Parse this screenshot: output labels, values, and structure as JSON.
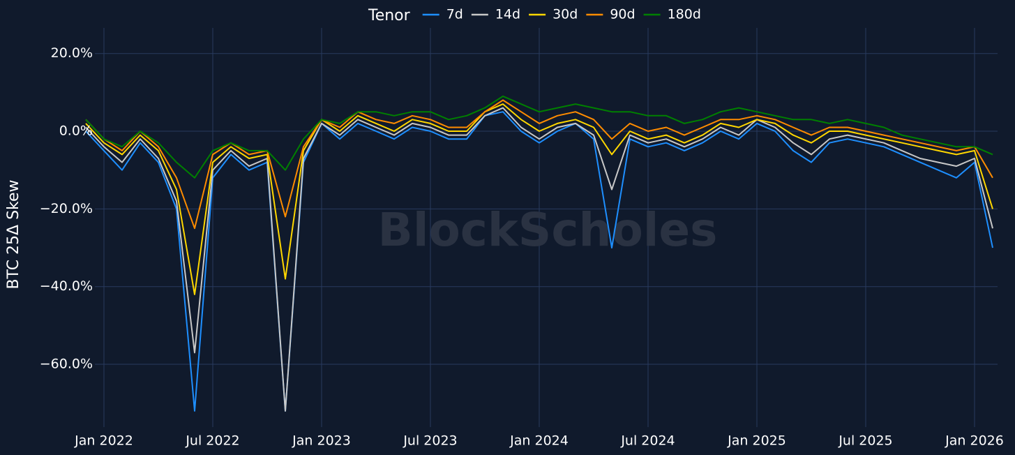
{
  "chart_data": {
    "type": "line",
    "y_label": "BTC 25Δ Skew",
    "legend_title": "Tenor",
    "watermark": "BlockScholes",
    "grid": true,
    "x": [
      "2021-12",
      "2022-01",
      "2022-02",
      "2022-03",
      "2022-04",
      "2022-05",
      "2022-06",
      "2022-07",
      "2022-08",
      "2022-09",
      "2022-10",
      "2022-11",
      "2022-12",
      "2023-01",
      "2023-02",
      "2023-03",
      "2023-04",
      "2023-05",
      "2023-06",
      "2023-07",
      "2023-08",
      "2023-09",
      "2023-10",
      "2023-11",
      "2023-12",
      "2024-01",
      "2024-02",
      "2024-03",
      "2024-04",
      "2024-05",
      "2024-06",
      "2024-07",
      "2024-08",
      "2024-09",
      "2024-10",
      "2024-11",
      "2024-12",
      "2025-01",
      "2025-02",
      "2025-03",
      "2025-04",
      "2025-05",
      "2025-06",
      "2025-07",
      "2025-08",
      "2025-09",
      "2025-10",
      "2025-11",
      "2025-12",
      "2026-01",
      "2026-02"
    ],
    "xlim": [
      "2021-12",
      "2026-02"
    ],
    "xticks": [
      {
        "value": "2022-01",
        "label": "Jan 2022"
      },
      {
        "value": "2022-07",
        "label": "Jul 2022"
      },
      {
        "value": "2023-01",
        "label": "Jan 2023"
      },
      {
        "value": "2023-07",
        "label": "Jul 2023"
      },
      {
        "value": "2024-01",
        "label": "Jan 2024"
      },
      {
        "value": "2024-07",
        "label": "Jul 2024"
      },
      {
        "value": "2025-01",
        "label": "Jan 2025"
      },
      {
        "value": "2025-07",
        "label": "Jul 2025"
      },
      {
        "value": "2026-01",
        "label": "Jan 2026"
      }
    ],
    "ylim": [
      -74,
      23
    ],
    "yticks": [
      {
        "value": -60,
        "label": "−60.0%"
      },
      {
        "value": -40,
        "label": "−40.0%"
      },
      {
        "value": -20,
        "label": "−20.0%"
      },
      {
        "value": 0,
        "label": "0.0%"
      },
      {
        "value": 20,
        "label": "20.0%"
      }
    ],
    "series": [
      {
        "name": "7d",
        "color": "#1e8fff",
        "values": [
          0,
          -5,
          -10,
          -3,
          -8,
          -20,
          -72,
          -12,
          -6,
          -10,
          -8,
          -72,
          -8,
          2,
          -2,
          2,
          0,
          -2,
          1,
          0,
          -2,
          -2,
          4,
          5,
          0,
          -3,
          0,
          2,
          -2,
          -30,
          -2,
          -4,
          -3,
          -5,
          -3,
          0,
          -2,
          2,
          0,
          -5,
          -8,
          -3,
          -2,
          -3,
          -4,
          -6,
          -8,
          -10,
          -12,
          -8,
          -30
        ]
      },
      {
        "name": "14d",
        "color": "#c8c8c8",
        "values": [
          1,
          -4,
          -8,
          -2,
          -7,
          -18,
          -57,
          -10,
          -5,
          -9,
          -7,
          -72,
          -7,
          2,
          -1,
          3,
          1,
          -1,
          2,
          1,
          -1,
          -1,
          4,
          6,
          1,
          -2,
          1,
          2,
          -1,
          -15,
          -1,
          -3,
          -2,
          -4,
          -2,
          1,
          -1,
          3,
          1,
          -3,
          -6,
          -2,
          -1,
          -2,
          -3,
          -5,
          -7,
          -8,
          -9,
          -7,
          -25
        ]
      },
      {
        "name": "30d",
        "color": "#ffd700",
        "values": [
          2,
          -3,
          -6,
          -1,
          -5,
          -15,
          -42,
          -8,
          -4,
          -7,
          -6,
          -38,
          -5,
          3,
          0,
          4,
          2,
          0,
          3,
          2,
          0,
          0,
          5,
          7,
          3,
          0,
          2,
          3,
          1,
          -6,
          0,
          -2,
          -1,
          -3,
          -1,
          2,
          1,
          3,
          2,
          -1,
          -3,
          0,
          0,
          -1,
          -2,
          -3,
          -4,
          -5,
          -6,
          -5,
          -20
        ]
      },
      {
        "name": "90d",
        "color": "#ff8c00",
        "values": [
          3,
          -2,
          -5,
          0,
          -4,
          -12,
          -25,
          -6,
          -3,
          -6,
          -5,
          -22,
          -4,
          3,
          1,
          5,
          3,
          2,
          4,
          3,
          1,
          1,
          5,
          8,
          5,
          2,
          4,
          5,
          3,
          -2,
          2,
          0,
          1,
          -1,
          1,
          3,
          3,
          4,
          3,
          1,
          -1,
          1,
          1,
          0,
          -1,
          -2,
          -3,
          -4,
          -5,
          -4,
          -12
        ]
      },
      {
        "name": "180d",
        "color": "#008000",
        "values": [
          3,
          -2,
          -4,
          0,
          -3,
          -8,
          -12,
          -5,
          -3,
          -5,
          -5,
          -10,
          -2,
          3,
          2,
          5,
          5,
          4,
          5,
          5,
          3,
          4,
          6,
          9,
          7,
          5,
          6,
          7,
          6,
          5,
          5,
          4,
          4,
          2,
          3,
          5,
          6,
          5,
          4,
          3,
          3,
          2,
          3,
          2,
          1,
          -1,
          -2,
          -3,
          -4,
          -4,
          -6
        ]
      }
    ]
  }
}
